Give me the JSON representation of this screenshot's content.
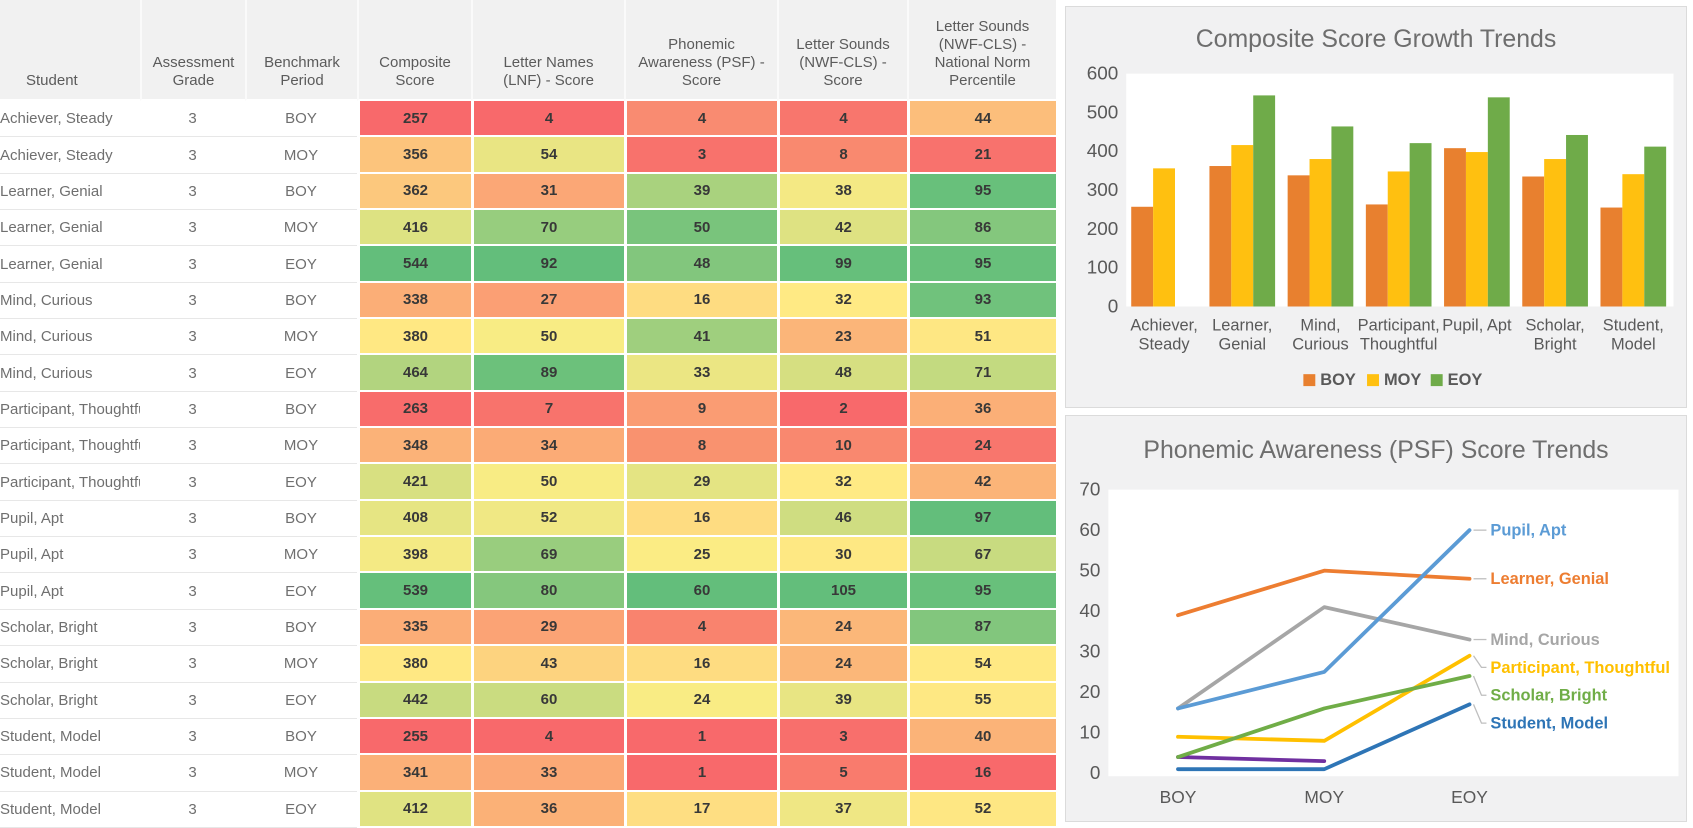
{
  "table": {
    "headers": [
      "Student",
      "Assessment\nGrade",
      "Benchmark\nPeriod",
      "Composite\nScore",
      "Letter Names\n(LNF) - Score",
      "Phonemic\nAwareness (PSF) -\nScore",
      "Letter Sounds\n(NWF-CLS) - Score",
      "Letter Sounds\n(NWF-CLS) -\nNational Norm\nPercentile"
    ],
    "rows": [
      {
        "student": "Achiever, Steady",
        "grade": "3",
        "period": "BOY",
        "scores": [
          {
            "v": "257",
            "c": "#F8696B"
          },
          {
            "v": "4",
            "c": "#F8696B"
          },
          {
            "v": "4",
            "c": "#F98B71"
          },
          {
            "v": "4",
            "c": "#F8766D"
          },
          {
            "v": "44",
            "c": "#FCBE7B"
          }
        ]
      },
      {
        "student": "Achiever, Steady",
        "grade": "3",
        "period": "MOY",
        "scores": [
          {
            "v": "356",
            "c": "#FCC47C"
          },
          {
            "v": "54",
            "c": "#E9E583"
          },
          {
            "v": "3",
            "c": "#F8726C"
          },
          {
            "v": "8",
            "c": "#F9896F"
          },
          {
            "v": "21",
            "c": "#F8726D"
          }
        ]
      },
      {
        "student": "Learner, Genial",
        "grade": "3",
        "period": "BOY",
        "scores": [
          {
            "v": "362",
            "c": "#FCC87D"
          },
          {
            "v": "31",
            "c": "#FBA776"
          },
          {
            "v": "39",
            "c": "#A9D27E"
          },
          {
            "v": "38",
            "c": "#F4E984"
          },
          {
            "v": "95",
            "c": "#68C07B"
          }
        ]
      },
      {
        "student": "Learner, Genial",
        "grade": "3",
        "period": "MOY",
        "scores": [
          {
            "v": "416",
            "c": "#DDE282"
          },
          {
            "v": "70",
            "c": "#97CD7E"
          },
          {
            "v": "50",
            "c": "#79C47C"
          },
          {
            "v": "42",
            "c": "#DEE282"
          },
          {
            "v": "86",
            "c": "#84C77D"
          }
        ]
      },
      {
        "student": "Learner, Genial",
        "grade": "3",
        "period": "EOY",
        "scores": [
          {
            "v": "544",
            "c": "#63BE7B"
          },
          {
            "v": "92",
            "c": "#63BE7B"
          },
          {
            "v": "48",
            "c": "#82C67D"
          },
          {
            "v": "99",
            "c": "#66BF7B"
          },
          {
            "v": "95",
            "c": "#68C07B"
          }
        ]
      },
      {
        "student": "Mind, Curious",
        "grade": "3",
        "period": "BOY",
        "scores": [
          {
            "v": "338",
            "c": "#FBAE77"
          },
          {
            "v": "27",
            "c": "#FB9F74"
          },
          {
            "v": "16",
            "c": "#FEDC81"
          },
          {
            "v": "32",
            "c": "#FFEA84"
          },
          {
            "v": "93",
            "c": "#70C27C"
          }
        ]
      },
      {
        "student": "Mind, Curious",
        "grade": "3",
        "period": "MOY",
        "scores": [
          {
            "v": "380",
            "c": "#FFE883"
          },
          {
            "v": "50",
            "c": "#F8EC84"
          },
          {
            "v": "41",
            "c": "#9FCF7E"
          },
          {
            "v": "23",
            "c": "#FBB579"
          },
          {
            "v": "51",
            "c": "#FEE783"
          }
        ]
      },
      {
        "student": "Mind, Curious",
        "grade": "3",
        "period": "EOY",
        "scores": [
          {
            "v": "464",
            "c": "#B2D47F"
          },
          {
            "v": "89",
            "c": "#6CC17B"
          },
          {
            "v": "33",
            "c": "#EBE683"
          },
          {
            "v": "48",
            "c": "#D6DF81"
          },
          {
            "v": "71",
            "c": "#C3DA80"
          }
        ]
      },
      {
        "student": "Participant, Thoughtful",
        "grade": "3",
        "period": "BOY",
        "scores": [
          {
            "v": "263",
            "c": "#F86C6B"
          },
          {
            "v": "7",
            "c": "#F8736C"
          },
          {
            "v": "9",
            "c": "#FA9C73"
          },
          {
            "v": "2",
            "c": "#F8696B"
          },
          {
            "v": "36",
            "c": "#FBAF77"
          }
        ]
      },
      {
        "student": "Participant, Thoughtful",
        "grade": "3",
        "period": "MOY",
        "scores": [
          {
            "v": "348",
            "c": "#FBB278"
          },
          {
            "v": "34",
            "c": "#FBAB76"
          },
          {
            "v": "8",
            "c": "#F9926F"
          },
          {
            "v": "10",
            "c": "#F9886F"
          },
          {
            "v": "24",
            "c": "#F8766D"
          }
        ]
      },
      {
        "student": "Participant, Thoughtful",
        "grade": "3",
        "period": "EOY",
        "scores": [
          {
            "v": "421",
            "c": "#D8E081"
          },
          {
            "v": "50",
            "c": "#F8EC84"
          },
          {
            "v": "29",
            "c": "#E4E483"
          },
          {
            "v": "32",
            "c": "#FFEA84"
          },
          {
            "v": "42",
            "c": "#FBB478"
          }
        ]
      },
      {
        "student": "Pupil, Apt",
        "grade": "3",
        "period": "BOY",
        "scores": [
          {
            "v": "408",
            "c": "#E6E583"
          },
          {
            "v": "52",
            "c": "#F0E884"
          },
          {
            "v": "16",
            "c": "#FEDC81"
          },
          {
            "v": "46",
            "c": "#CFDD81"
          },
          {
            "v": "97",
            "c": "#63BE7B"
          }
        ]
      },
      {
        "student": "Pupil, Apt",
        "grade": "3",
        "period": "MOY",
        "scores": [
          {
            "v": "398",
            "c": "#F4EA84"
          },
          {
            "v": "69",
            "c": "#99CD7E"
          },
          {
            "v": "25",
            "c": "#FBEC84"
          },
          {
            "v": "30",
            "c": "#FEE883"
          },
          {
            "v": "67",
            "c": "#C8DB80"
          }
        ]
      },
      {
        "student": "Pupil, Apt",
        "grade": "3",
        "period": "EOY",
        "scores": [
          {
            "v": "539",
            "c": "#65BF7B"
          },
          {
            "v": "80",
            "c": "#85C77D"
          },
          {
            "v": "60",
            "c": "#63BE7B"
          },
          {
            "v": "105",
            "c": "#63BE7B"
          },
          {
            "v": "95",
            "c": "#68C07B"
          }
        ]
      },
      {
        "student": "Scholar, Bright",
        "grade": "3",
        "period": "BOY",
        "scores": [
          {
            "v": "335",
            "c": "#FBAD77"
          },
          {
            "v": "29",
            "c": "#FBA375"
          },
          {
            "v": "4",
            "c": "#F9836E"
          },
          {
            "v": "24",
            "c": "#FBB779"
          },
          {
            "v": "87",
            "c": "#82C67D"
          }
        ]
      },
      {
        "student": "Scholar, Bright",
        "grade": "3",
        "period": "MOY",
        "scores": [
          {
            "v": "380",
            "c": "#FFE883"
          },
          {
            "v": "43",
            "c": "#FDD37F"
          },
          {
            "v": "16",
            "c": "#FEDC81"
          },
          {
            "v": "24",
            "c": "#FBB779"
          },
          {
            "v": "54",
            "c": "#FFE983"
          }
        ]
      },
      {
        "student": "Scholar, Bright",
        "grade": "3",
        "period": "EOY",
        "scores": [
          {
            "v": "442",
            "c": "#C8DB80"
          },
          {
            "v": "60",
            "c": "#CADC80"
          },
          {
            "v": "24",
            "c": "#F9EC84"
          },
          {
            "v": "39",
            "c": "#E8E583"
          },
          {
            "v": "55",
            "c": "#FEE883"
          }
        ]
      },
      {
        "student": "Student, Model",
        "grade": "3",
        "period": "BOY",
        "scores": [
          {
            "v": "255",
            "c": "#F8696B"
          },
          {
            "v": "4",
            "c": "#F8696B"
          },
          {
            "v": "1",
            "c": "#F8696B"
          },
          {
            "v": "3",
            "c": "#F86F6C"
          },
          {
            "v": "40",
            "c": "#FBB378"
          }
        ]
      },
      {
        "student": "Student, Model",
        "grade": "3",
        "period": "MOY",
        "scores": [
          {
            "v": "341",
            "c": "#FBB078"
          },
          {
            "v": "33",
            "c": "#FBA976"
          },
          {
            "v": "1",
            "c": "#F8696B"
          },
          {
            "v": "5",
            "c": "#F97B6D"
          },
          {
            "v": "16",
            "c": "#F8696B"
          }
        ]
      },
      {
        "student": "Student, Model",
        "grade": "3",
        "period": "EOY",
        "scores": [
          {
            "v": "412",
            "c": "#E0E382"
          },
          {
            "v": "36",
            "c": "#FBB177"
          },
          {
            "v": "17",
            "c": "#FEDE82"
          },
          {
            "v": "37",
            "c": "#EFE784"
          },
          {
            "v": "52",
            "c": "#FEE783"
          }
        ]
      }
    ]
  },
  "chart_data": [
    {
      "type": "bar",
      "title": "Composite Score Growth Trends",
      "categories": [
        "Achiever, Steady",
        "Learner, Genial",
        "Mind, Curious",
        "Participant, Thoughtful",
        "Pupil, Apt",
        "Scholar, Bright",
        "Student, Model"
      ],
      "series": [
        {
          "name": "BOY",
          "color": "#E8802F",
          "values": [
            257,
            362,
            338,
            263,
            408,
            335,
            255
          ]
        },
        {
          "name": "MOY",
          "color": "#FFC010",
          "values": [
            356,
            416,
            380,
            348,
            398,
            380,
            341
          ]
        },
        {
          "name": "EOY",
          "color": "#6FAB49",
          "values": [
            null,
            544,
            464,
            421,
            539,
            442,
            412
          ]
        }
      ],
      "ylim": [
        0,
        600
      ],
      "ytick": 100,
      "grid": false,
      "legend_position": "bottom"
    },
    {
      "type": "line",
      "title": "Phonemic Awareness (PSF) Score Trends",
      "x": [
        "BOY",
        "MOY",
        "EOY"
      ],
      "ylim": [
        0,
        70
      ],
      "ytick": 10,
      "grid": false,
      "legend_position": "end-labels",
      "series": [
        {
          "name": "Achiever, Steady",
          "color": "#7030A0",
          "values": [
            4,
            3,
            null
          ],
          "labeled": false
        },
        {
          "name": "Learner, Genial",
          "color": "#ED7D31",
          "values": [
            39,
            50,
            48
          ],
          "labeled": true
        },
        {
          "name": "Mind, Curious",
          "color": "#A6A6A6",
          "values": [
            16,
            41,
            33
          ],
          "labeled": true
        },
        {
          "name": "Participant, Thoughtful",
          "color": "#FFC000",
          "values": [
            9,
            8,
            29
          ],
          "labeled": true
        },
        {
          "name": "Pupil, Apt",
          "color": "#5B9BD5",
          "values": [
            16,
            25,
            60
          ],
          "labeled": true
        },
        {
          "name": "Scholar, Bright",
          "color": "#70AD47",
          "values": [
            4,
            16,
            24
          ],
          "labeled": true
        },
        {
          "name": "Student, Model",
          "color": "#2E75B6",
          "values": [
            1,
            1,
            17
          ],
          "labeled": true
        }
      ]
    }
  ],
  "colors": {
    "scale_min_red": "#F8696B",
    "scale_mid_yellow": "#FFEB84",
    "scale_max_green": "#63BE7B",
    "axis_text": "#595959",
    "chart_title": "#6E6E6E",
    "card_bg": "#F1F1F2"
  }
}
